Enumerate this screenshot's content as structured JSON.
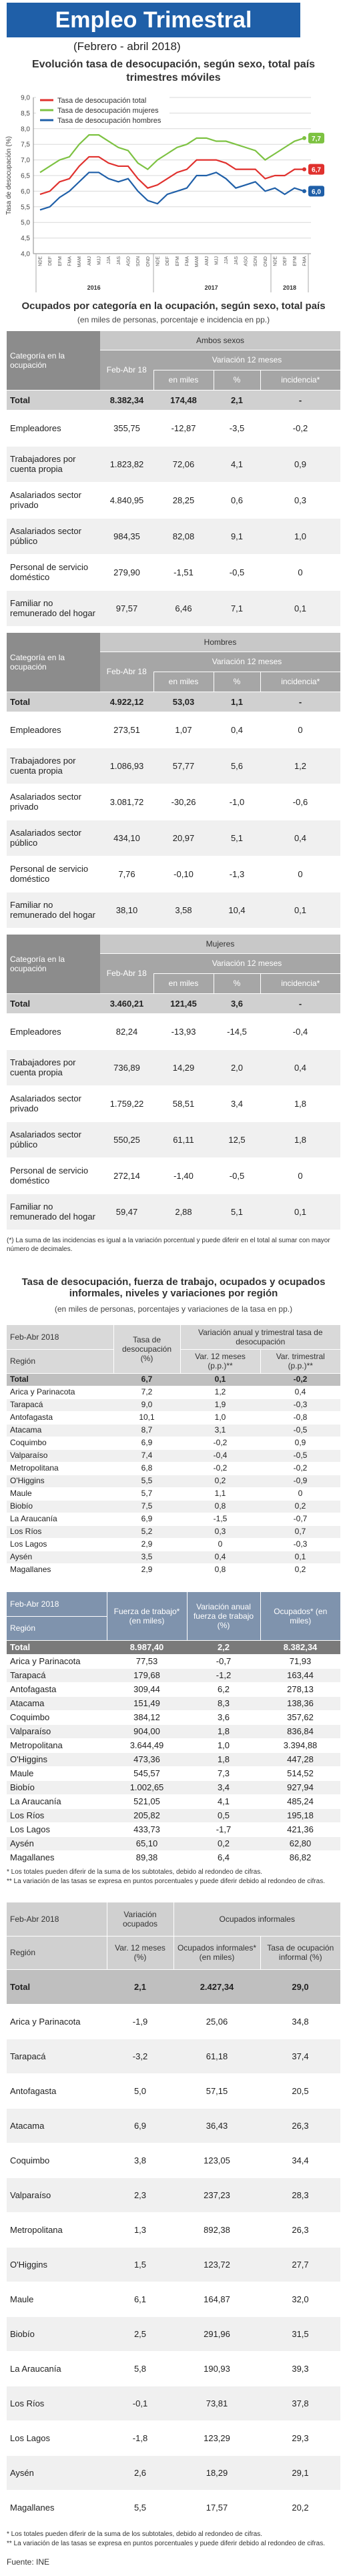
{
  "header": {
    "title": "Empleo Trimestral",
    "subtitle": "(Febrero - abril 2018)"
  },
  "chart_data": {
    "type": "line",
    "title": "Evolución tasa de desocupación, según sexo, total país",
    "subtitle": "trimestres móviles",
    "y_label": "Tasa de desocupación (%)",
    "categories": [
      "NDE",
      "DEF",
      "EFM",
      "FMA",
      "MAM",
      "AMJ",
      "MJJ",
      "JJA",
      "JAS",
      "ASO",
      "SON",
      "OND",
      "NDE",
      "DEF",
      "EFM",
      "FMA",
      "MAM",
      "AMJ",
      "MJJ",
      "JJA",
      "JAS",
      "ASO",
      "SON",
      "OND",
      "NDE",
      "DEF",
      "EFM",
      "FMA"
    ],
    "year_labels": [
      "2016",
      "2017",
      "2018"
    ],
    "year_spans": [
      12,
      12,
      4
    ],
    "series": [
      {
        "name": "Tasa de desocupación total",
        "color": "#e0312e",
        "values": [
          5.9,
          6.0,
          6.3,
          6.4,
          6.8,
          7.1,
          7.1,
          6.9,
          6.8,
          6.8,
          6.4,
          6.1,
          6.2,
          6.4,
          6.6,
          6.7,
          7.0,
          7.0,
          7.0,
          6.9,
          6.7,
          6.7,
          6.7,
          6.4,
          6.5,
          6.5,
          6.7,
          6.7
        ],
        "value_labels": [
          null,
          null,
          null,
          null,
          null,
          null,
          null,
          null,
          null,
          null,
          null,
          null,
          null,
          null,
          null,
          null,
          null,
          null,
          null,
          null,
          null,
          null,
          null,
          null,
          null,
          null,
          null,
          "6,7"
        ]
      },
      {
        "name": "Tasa de desocupación mujeres",
        "color": "#7dc242",
        "values": [
          6.6,
          6.8,
          7.0,
          7.1,
          7.5,
          7.8,
          7.8,
          7.6,
          7.4,
          7.3,
          6.9,
          6.7,
          7.0,
          7.2,
          7.4,
          7.5,
          7.7,
          7.7,
          7.6,
          7.6,
          7.5,
          7.4,
          7.3,
          7.0,
          7.2,
          7.4,
          7.6,
          7.7
        ],
        "value_labels": [
          null,
          null,
          null,
          null,
          null,
          null,
          null,
          null,
          null,
          null,
          null,
          null,
          null,
          null,
          null,
          null,
          null,
          null,
          null,
          null,
          null,
          null,
          null,
          null,
          null,
          null,
          null,
          "7,7"
        ]
      },
      {
        "name": "Tasa de desocupación hombres",
        "color": "#1f5fa8",
        "values": [
          5.4,
          5.5,
          5.8,
          6.0,
          6.3,
          6.6,
          6.6,
          6.4,
          6.3,
          6.4,
          6.0,
          5.7,
          5.6,
          5.9,
          6.0,
          6.1,
          6.5,
          6.5,
          6.6,
          6.4,
          6.1,
          6.2,
          6.3,
          6.0,
          6.1,
          5.9,
          6.1,
          6.0
        ],
        "value_labels": [
          null,
          null,
          null,
          null,
          null,
          null,
          null,
          null,
          null,
          null,
          null,
          null,
          null,
          null,
          null,
          null,
          null,
          null,
          null,
          null,
          null,
          null,
          null,
          null,
          null,
          null,
          null,
          "6,0"
        ]
      }
    ],
    "ylim": [
      4,
      9
    ],
    "yticks": [
      {
        "value": 4,
        "label": "4,0"
      },
      {
        "value": 4.5,
        "label": "4,5"
      },
      {
        "value": 5,
        "label": "5,0"
      },
      {
        "value": 5.5,
        "label": "5,5"
      },
      {
        "value": 6,
        "label": "6,0"
      },
      {
        "value": 6.5,
        "label": "6,5"
      },
      {
        "value": 7,
        "label": "7,0"
      },
      {
        "value": 7.5,
        "label": "7,5"
      },
      {
        "value": 8,
        "label": "8,0"
      },
      {
        "value": 8.5,
        "label": "8,5"
      },
      {
        "value": 9,
        "label": "9,0"
      }
    ],
    "grid": true
  },
  "table1": {
    "title": "Ocupados por categoría en la ocupación, según sexo, total país",
    "subtitle": "(en miles de personas, porcentaje e incidencia en pp.)",
    "columns": {
      "category": "Categoría en la ocupación",
      "period": "Feb-Abr 18",
      "variation": "Variación 12 meses",
      "thousands": "en miles",
      "percent": "%",
      "incidence": "incidencia*"
    },
    "blocks": [
      {
        "group": "Ambos sexos",
        "rows": [
          [
            "Total",
            "8.382,34",
            "174,48",
            "2,1",
            "-"
          ],
          [
            "Empleadores",
            "355,75",
            "-12,87",
            "-3,5",
            "-0,2"
          ],
          [
            "Trabajadores por cuenta propia",
            "1.823,82",
            "72,06",
            "4,1",
            "0,9"
          ],
          [
            "Asalariados sector privado",
            "4.840,95",
            "28,25",
            "0,6",
            "0,3"
          ],
          [
            "Asalariados sector público",
            "984,35",
            "82,08",
            "9,1",
            "1,0"
          ],
          [
            "Personal de servicio doméstico",
            "279,90",
            "-1,51",
            "-0,5",
            "0"
          ],
          [
            "Familiar no remunerado del hogar",
            "97,57",
            "6,46",
            "7,1",
            "0,1"
          ]
        ]
      },
      {
        "group": "Hombres",
        "rows": [
          [
            "Total",
            "4.922,12",
            "53,03",
            "1,1",
            "-"
          ],
          [
            "Empleadores",
            "273,51",
            "1,07",
            "0,4",
            "0"
          ],
          [
            "Trabajadores por cuenta propia",
            "1.086,93",
            "57,77",
            "5,6",
            "1,2"
          ],
          [
            "Asalariados sector privado",
            "3.081,72",
            "-30,26",
            "-1,0",
            "-0,6"
          ],
          [
            "Asalariados sector público",
            "434,10",
            "20,97",
            "5,1",
            "0,4"
          ],
          [
            "Personal de servicio doméstico",
            "7,76",
            "-0,10",
            "-1,3",
            "0"
          ],
          [
            "Familiar no remunerado del hogar",
            "38,10",
            "3,58",
            "10,4",
            "0,1"
          ]
        ]
      },
      {
        "group": "Mujeres",
        "rows": [
          [
            "Total",
            "3.460,21",
            "121,45",
            "3,6",
            "-"
          ],
          [
            "Empleadores",
            "82,24",
            "-13,93",
            "-14,5",
            "-0,4"
          ],
          [
            "Trabajadores por cuenta propia",
            "736,89",
            "14,29",
            "2,0",
            "0,4"
          ],
          [
            "Asalariados sector privado",
            "1.759,22",
            "58,51",
            "3,4",
            "1,8"
          ],
          [
            "Asalariados sector público",
            "550,25",
            "61,11",
            "12,5",
            "1,8"
          ],
          [
            "Personal de servicio doméstico",
            "272,14",
            "-1,40",
            "-0,5",
            "0"
          ],
          [
            "Familiar no remunerado del hogar",
            "59,47",
            "2,88",
            "5,1",
            "0,1"
          ]
        ]
      }
    ],
    "footnote": "(*) La suma de las incidencias es igual a la variación porcentual y puede diferir en el total al sumar con mayor número de decimales."
  },
  "table2": {
    "title": "Tasa de desocupación, fuerza de trabajo, ocupados y ocupados informales, niveles y variaciones por región",
    "subtitle": "(en miles de personas, porcentajes y variaciones de la tasa en pp.)",
    "columns": {
      "period": "Feb-Abr 2018",
      "region": "Región",
      "rate": "Tasa de desocupación (%)",
      "variation": "Variación anual y trimestral tasa de desocupación",
      "var12": "Var. 12 meses (p.p.)**",
      "varq": "Var. trimestral (p.p.)**"
    },
    "rows": [
      [
        "Total",
        "6,7",
        "0,1",
        "-0,2"
      ],
      [
        "Arica y Parinacota",
        "7,2",
        "1,2",
        "0,4"
      ],
      [
        "Tarapacá",
        "9,0",
        "1,9",
        "-0,3"
      ],
      [
        "Antofagasta",
        "10,1",
        "1,0",
        "-0,8"
      ],
      [
        "Atacama",
        "8,7",
        "3,1",
        "-0,5"
      ],
      [
        "Coquimbo",
        "6,9",
        "-0,2",
        "0,9"
      ],
      [
        "Valparaíso",
        "7,4",
        "-0,4",
        "-0,5"
      ],
      [
        "Metropolitana",
        "6,8",
        "-0,2",
        "-0,2"
      ],
      [
        "O'Higgins",
        "5,5",
        "0,2",
        "-0,9"
      ],
      [
        "Maule",
        "5,7",
        "1,1",
        "0"
      ],
      [
        "Biobío",
        "7,5",
        "0,8",
        "0,2"
      ],
      [
        "La Araucanía",
        "6,9",
        "-1,5",
        "-0,7"
      ],
      [
        "Los Ríos",
        "5,2",
        "0,3",
        "0,7"
      ],
      [
        "Los Lagos",
        "2,9",
        "0",
        "-0,3"
      ],
      [
        "Aysén",
        "3,5",
        "0,4",
        "0,1"
      ],
      [
        "Magallanes",
        "2,9",
        "0,8",
        "0,2"
      ]
    ]
  },
  "table3": {
    "columns": {
      "period": "Feb-Abr 2018",
      "region": "Región",
      "labor_force": "Fuerza de trabajo* (en miles)",
      "labor_var": "Variación anual fuerza de trabajo (%)",
      "employed": "Ocupados* (en miles)"
    },
    "rows": [
      [
        "Total",
        "8.987,40",
        "2,2",
        "8.382,34"
      ],
      [
        "Arica y Parinacota",
        "77,53",
        "-0,7",
        "71,93"
      ],
      [
        "Tarapacá",
        "179,68",
        "-1,2",
        "163,44"
      ],
      [
        "Antofagasta",
        "309,44",
        "6,2",
        "278,13"
      ],
      [
        "Atacama",
        "151,49",
        "8,3",
        "138,36"
      ],
      [
        "Coquimbo",
        "384,12",
        "3,6",
        "357,62"
      ],
      [
        "Valparaíso",
        "904,00",
        "1,8",
        "836,84"
      ],
      [
        "Metropolitana",
        "3.644,49",
        "1,0",
        "3.394,88"
      ],
      [
        "O'Higgins",
        "473,36",
        "1,8",
        "447,28"
      ],
      [
        "Maule",
        "545,57",
        "7,3",
        "514,52"
      ],
      [
        "Biobío",
        "1.002,65",
        "3,4",
        "927,94"
      ],
      [
        "La Araucanía",
        "521,05",
        "4,1",
        "485,24"
      ],
      [
        "Los Ríos",
        "205,82",
        "0,5",
        "195,18"
      ],
      [
        "Los Lagos",
        "433,73",
        "-1,7",
        "421,36"
      ],
      [
        "Aysén",
        "65,10",
        "0,2",
        "62,80"
      ],
      [
        "Magallanes",
        "89,38",
        "6,4",
        "86,82"
      ]
    ]
  },
  "table4": {
    "columns": {
      "period": "Feb-Abr 2018",
      "region": "Región",
      "employed_var": "Variación ocupados",
      "var12": "Var. 12 meses (%)",
      "informal": "Ocupados informales",
      "informal_k": "Ocupados informales* (en miles)",
      "informal_rate": "Tasa de ocupación informal (%)"
    },
    "rows": [
      [
        "Total",
        "2,1",
        "2.427,34",
        "29,0"
      ],
      [
        "Arica y Parinacota",
        "-1,9",
        "25,06",
        "34,8"
      ],
      [
        "Tarapacá",
        "-3,2",
        "61,18",
        "37,4"
      ],
      [
        "Antofagasta",
        "5,0",
        "57,15",
        "20,5"
      ],
      [
        "Atacama",
        "6,9",
        "36,43",
        "26,3"
      ],
      [
        "Coquimbo",
        "3,8",
        "123,05",
        "34,4"
      ],
      [
        "Valparaíso",
        "2,3",
        "237,23",
        "28,3"
      ],
      [
        "Metropolitana",
        "1,3",
        "892,38",
        "26,3"
      ],
      [
        "O'Higgins",
        "1,5",
        "123,72",
        "27,7"
      ],
      [
        "Maule",
        "6,1",
        "164,87",
        "32,0"
      ],
      [
        "Biobío",
        "2,5",
        "291,96",
        "31,5"
      ],
      [
        "La Araucanía",
        "5,8",
        "190,93",
        "39,3"
      ],
      [
        "Los Ríos",
        "-0,1",
        "73,81",
        "37,8"
      ],
      [
        "Los Lagos",
        "-1,8",
        "123,29",
        "29,3"
      ],
      [
        "Aysén",
        "2,6",
        "18,29",
        "29,1"
      ],
      [
        "Magallanes",
        "5,5",
        "17,57",
        "20,2"
      ]
    ]
  },
  "notes": [
    "* Los totales pueden diferir de la suma de los subtotales, debido al redondeo de cifras.",
    "** La variación de las tasas se expresa en puntos porcentuales y puede diferir debido al redondeo de cifras."
  ],
  "source": "Fuente: INE"
}
